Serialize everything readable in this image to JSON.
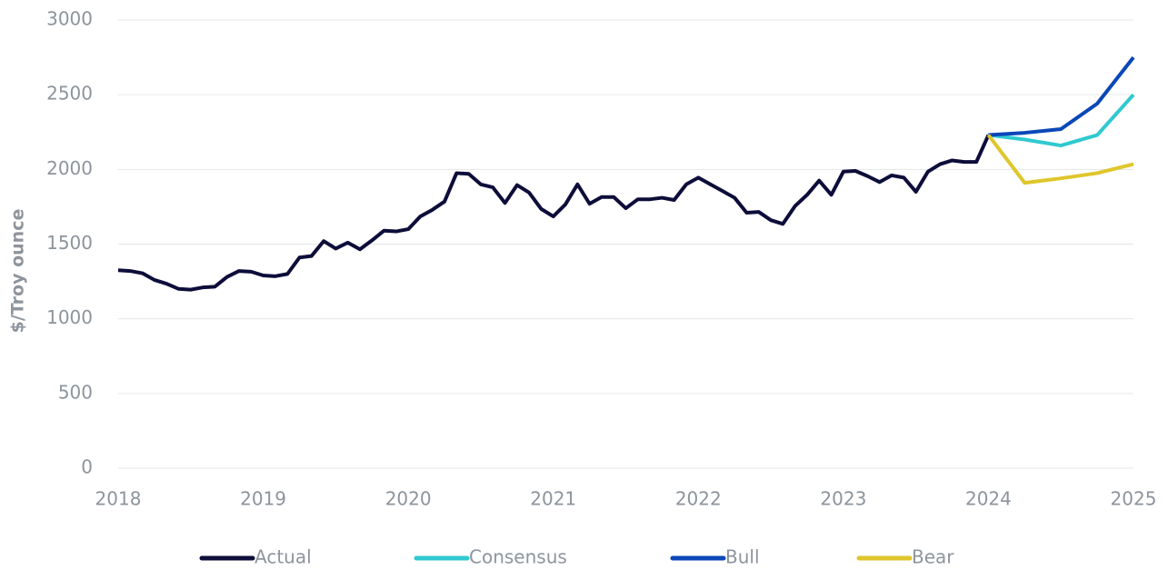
{
  "chart_data": {
    "type": "line",
    "y_label": "$/Troy ounce",
    "xlim": [
      2018,
      2025
    ],
    "xticks": [
      2018,
      2019,
      2020,
      2021,
      2022,
      2023,
      2024,
      2025
    ],
    "ylim": [
      0,
      3000
    ],
    "yticks": [
      0,
      500,
      1000,
      1500,
      2000,
      2500,
      3000
    ],
    "grid": true,
    "legend": "bottom",
    "series": [
      {
        "name": "Actual",
        "color": "#0d0d3a",
        "x": [
          2018,
          2018.083,
          2018.167,
          2018.25,
          2018.333,
          2018.417,
          2018.5,
          2018.583,
          2018.667,
          2018.75,
          2018.833,
          2018.917,
          2019,
          2019.083,
          2019.167,
          2019.25,
          2019.333,
          2019.417,
          2019.5,
          2019.583,
          2019.667,
          2019.75,
          2019.833,
          2019.917,
          2020,
          2020.083,
          2020.167,
          2020.25,
          2020.333,
          2020.417,
          2020.5,
          2020.583,
          2020.667,
          2020.75,
          2020.833,
          2020.917,
          2021,
          2021.083,
          2021.167,
          2021.25,
          2021.333,
          2021.417,
          2021.5,
          2021.583,
          2021.667,
          2021.75,
          2021.833,
          2021.917,
          2022,
          2022.083,
          2022.167,
          2022.25,
          2022.333,
          2022.417,
          2022.5,
          2022.583,
          2022.667,
          2022.75,
          2022.833,
          2022.917,
          2023,
          2023.083,
          2023.167,
          2023.25,
          2023.333,
          2023.417,
          2023.5,
          2023.583,
          2023.667,
          2023.75,
          2023.833,
          2023.917,
          2024
        ],
        "values": [
          1325,
          1320,
          1305,
          1260,
          1235,
          1200,
          1195,
          1210,
          1215,
          1280,
          1320,
          1315,
          1290,
          1285,
          1300,
          1410,
          1420,
          1520,
          1470,
          1510,
          1465,
          1525,
          1590,
          1585,
          1600,
          1685,
          1730,
          1785,
          1975,
          1970,
          1900,
          1880,
          1775,
          1895,
          1845,
          1735,
          1685,
          1765,
          1900,
          1770,
          1815,
          1815,
          1740,
          1800,
          1800,
          1810,
          1795,
          1900,
          1945,
          1900,
          1855,
          1810,
          1710,
          1715,
          1660,
          1635,
          1755,
          1830,
          1925,
          1830,
          1985,
          1990,
          1955,
          1915,
          1960,
          1945,
          1850,
          1985,
          2035,
          2060,
          2050,
          2050,
          2230
        ]
      },
      {
        "name": "Consensus",
        "color": "#30c9d0",
        "x": [
          2024,
          2024.25,
          2024.5,
          2024.75,
          2025
        ],
        "values": [
          2230,
          2200,
          2160,
          2230,
          2500
        ]
      },
      {
        "name": "Bull",
        "color": "#0a47b8",
        "x": [
          2024,
          2024.25,
          2024.5,
          2024.75,
          2025
        ],
        "values": [
          2230,
          2245,
          2270,
          2440,
          2750
        ]
      },
      {
        "name": "Bear",
        "color": "#dfc62b",
        "x": [
          2024,
          2024.25,
          2024.5,
          2024.75,
          2025
        ],
        "values": [
          2230,
          1910,
          1940,
          1975,
          2035
        ]
      }
    ]
  }
}
